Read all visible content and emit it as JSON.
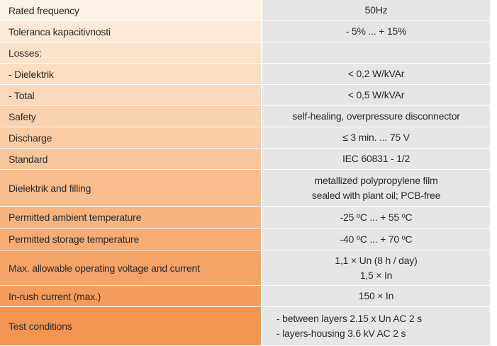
{
  "table": {
    "rows": [
      {
        "label": "Rated frequency",
        "value_lines": [
          "50Hz"
        ]
      },
      {
        "label": "Toleranca kapacitivnosti",
        "value_lines": [
          "- 5% ... + 15%"
        ]
      },
      {
        "label": "Losses:",
        "value_lines": []
      },
      {
        "label": " - Dielektrik",
        "value_lines": [
          "< 0,2 W/kVAr"
        ]
      },
      {
        "label": " - Total",
        "value_lines": [
          "< 0,5 W/kVAr"
        ]
      },
      {
        "label": "Safety",
        "value_lines": [
          "self-healing, overpressure disconnector"
        ]
      },
      {
        "label": "Discharge",
        "value_lines": [
          "≤ 3 min. ... 75 V"
        ]
      },
      {
        "label": "Standard",
        "value_lines": [
          "IEC 60831 - 1/2"
        ]
      },
      {
        "label": "Dielektrik and filling",
        "value_lines": [
          "metallized polypropylene film",
          "sealed with plant oil; PCB-free"
        ]
      },
      {
        "label": "Permitted ambient temperature",
        "value_lines": [
          "-25 ºC ... + 55 ºC"
        ]
      },
      {
        "label": "Permitted storage temperature",
        "value_lines": [
          "-40 ºC ... + 70 ºC"
        ]
      },
      {
        "label": "Max. allowable operating voltage and current",
        "value_lines": [
          "1,1 × Un (8 h / day)",
          "1,5 × In"
        ]
      },
      {
        "label": "In-rush current (max.)",
        "value_lines": [
          "150 × In"
        ]
      },
      {
        "label": "Test conditions",
        "value_lines": [
          "- between layers 2.15 x Un  AC 2 s",
          "- layers-housing 3.6 kV  AC 2 s"
        ]
      }
    ]
  },
  "colors": {
    "label_gradient": [
      "#fdf2e6",
      "#fce5cf",
      "#fbd5b0",
      "#f9c48e",
      "#f6b070",
      "#f4a055"
    ],
    "value_background": "#e7e6e6"
  }
}
